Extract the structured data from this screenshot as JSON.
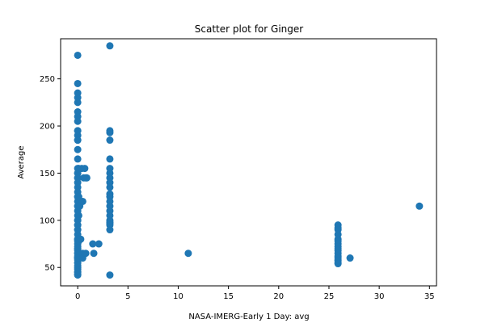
{
  "chart_data": {
    "type": "scatter",
    "title": "Scatter plot for Ginger",
    "xlabel": "NASA-IMERG-Early 1 Day: avg",
    "ylabel": "Average",
    "xlim": [
      -1.7,
      35.7
    ],
    "ylim": [
      30.5,
      292.5
    ],
    "xticks": [
      0,
      5,
      10,
      15,
      20,
      25,
      30,
      35
    ],
    "yticks": [
      50,
      100,
      150,
      200,
      250
    ],
    "grid": false,
    "marker_color": "#1f77b4",
    "series": [
      {
        "x": [
          0,
          0,
          0,
          0,
          0,
          0,
          0,
          0,
          0,
          0,
          0,
          0,
          0,
          0,
          0,
          0,
          0,
          0,
          0,
          0,
          0,
          0,
          0,
          0,
          0,
          0,
          0,
          0,
          0,
          0,
          0,
          0,
          0,
          0,
          0,
          0,
          0,
          0,
          0,
          0,
          0,
          0,
          0,
          0,
          0,
          0,
          0,
          0,
          0,
          0,
          0,
          0,
          0,
          0,
          0,
          0,
          0,
          0,
          0,
          0,
          0,
          0.1,
          0.1,
          0.1,
          0.1,
          0.2,
          0.3,
          0.4,
          0.5,
          0.5,
          0.5,
          0.6,
          0.7,
          0.8,
          0.8,
          0.9,
          1.5,
          1.6,
          2.1,
          3.2,
          3.2,
          3.2,
          3.2,
          3.2,
          3.2,
          3.2,
          3.2,
          3.2,
          3.2,
          3.2,
          3.2,
          3.2,
          3.2,
          3.2,
          3.2,
          3.2,
          3.2,
          3.2,
          3.2,
          3.2,
          3.2,
          11,
          25.9,
          25.9,
          25.9,
          25.9,
          25.9,
          25.9,
          25.9,
          25.9,
          25.9,
          25.9,
          25.9,
          25.9,
          25.9,
          25.9,
          25.9,
          25.9,
          25.9,
          27.1,
          34
        ],
        "y": [
          275,
          245,
          235,
          230,
          225,
          215,
          210,
          205,
          195,
          190,
          185,
          175,
          165,
          155,
          150,
          145,
          140,
          135,
          130,
          125,
          120,
          115,
          110,
          105,
          100,
          95,
          90,
          85,
          80,
          78,
          75,
          72,
          70,
          68,
          65,
          62,
          60,
          58,
          55,
          52,
          50,
          48,
          45,
          43,
          42,
          150,
          125,
          115,
          100,
          90,
          80,
          70,
          65,
          60,
          55,
          45,
          195,
          185,
          145,
          95,
          60,
          155,
          125,
          105,
          78,
          115,
          80,
          155,
          120,
          65,
          60,
          145,
          155,
          145,
          65,
          145,
          75,
          65,
          75,
          285,
          195,
          193,
          185,
          165,
          155,
          150,
          145,
          140,
          135,
          128,
          125,
          120,
          115,
          110,
          105,
          100,
          98,
          97,
          95,
          90,
          42,
          65,
          95,
          92,
          90,
          85,
          80,
          78,
          75,
          72,
          70,
          68,
          65,
          62,
          60,
          58,
          57,
          55,
          54,
          60,
          115
        ]
      }
    ]
  }
}
